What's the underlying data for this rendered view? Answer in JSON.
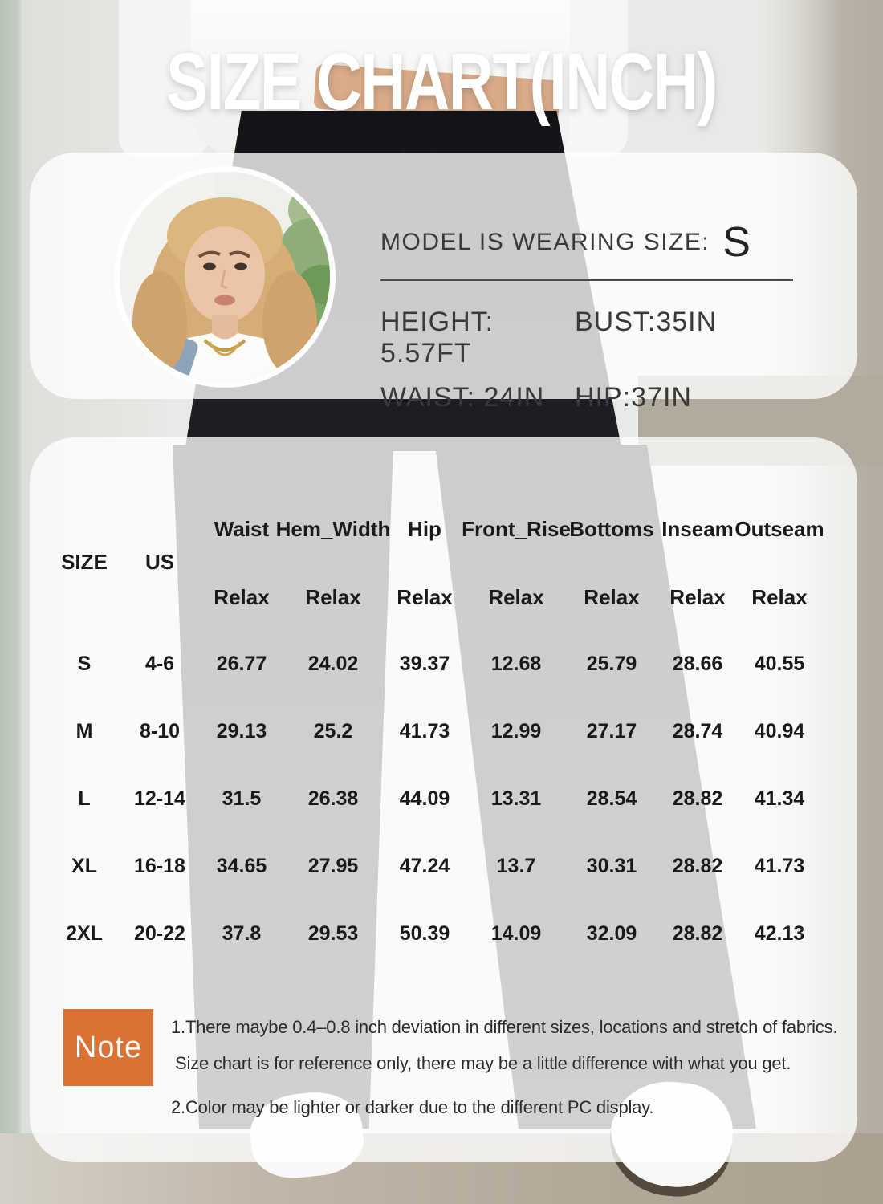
{
  "title": "SIZE CHART(INCH)",
  "unit": "inch",
  "model_card": {
    "wearing_label": "MODEL IS WEARING SIZE:",
    "wearing_size": "S",
    "stats": {
      "s1": "HEIGHT: 5.57FT",
      "s2": "BUST:35IN",
      "s3": "WAIST: 24IN",
      "s4": "HIP:37IN"
    }
  },
  "size_table": {
    "col_size": "SIZE",
    "col_us": "US",
    "measure_columns": [
      "Waist",
      "Hem_Width",
      "Hip",
      "Front_Rise",
      "Bottoms",
      "Inseam",
      "Outseam"
    ],
    "fit_label": "Relax",
    "rows": [
      {
        "size": "S",
        "us": "4-6",
        "values": [
          "26.77",
          "24.02",
          "39.37",
          "12.68",
          "25.79",
          "28.66",
          "40.55"
        ]
      },
      {
        "size": "M",
        "us": "8-10",
        "values": [
          "29.13",
          "25.2",
          "41.73",
          "12.99",
          "27.17",
          "28.74",
          "40.94"
        ]
      },
      {
        "size": "L",
        "us": "12-14",
        "values": [
          "31.5",
          "26.38",
          "44.09",
          "13.31",
          "28.54",
          "28.82",
          "41.34"
        ]
      },
      {
        "size": "XL",
        "us": "16-18",
        "values": [
          "34.65",
          "27.95",
          "47.24",
          "13.7",
          "30.31",
          "28.82",
          "41.73"
        ]
      },
      {
        "size": "2XL",
        "us": "20-22",
        "values": [
          "37.8",
          "29.53",
          "50.39",
          "14.09",
          "32.09",
          "28.82",
          "42.13"
        ]
      }
    ]
  },
  "note": {
    "badge": "Note",
    "line1": "1.There maybe 0.4–0.8 inch deviation in different sizes, locations and stretch of fabrics.",
    "line2": "Size chart is for reference only, there may be a little difference with what you get.",
    "line3": "2.Color may be lighter or darker due to the different PC display."
  },
  "colors": {
    "note_badge": "#dc7134",
    "title_text": "#ffffff",
    "table_text": "#1a1a1a",
    "panel_overlay": "rgba(255,255,255,0.78)"
  },
  "chart_data": {
    "type": "table",
    "title": "SIZE CHART(INCH)",
    "units": "inches",
    "fit": "Relax",
    "columns": [
      "SIZE",
      "US",
      "Waist",
      "Hem_Width",
      "Hip",
      "Front_Rise",
      "Bottoms",
      "Inseam",
      "Outseam"
    ],
    "rows": [
      [
        "S",
        "4-6",
        26.77,
        24.02,
        39.37,
        12.68,
        25.79,
        28.66,
        40.55
      ],
      [
        "M",
        "8-10",
        29.13,
        25.2,
        41.73,
        12.99,
        27.17,
        28.74,
        40.94
      ],
      [
        "L",
        "12-14",
        31.5,
        26.38,
        44.09,
        13.31,
        28.54,
        28.82,
        41.34
      ],
      [
        "XL",
        "16-18",
        34.65,
        27.95,
        47.24,
        13.7,
        30.31,
        28.82,
        41.73
      ],
      [
        "2XL",
        "20-22",
        37.8,
        29.53,
        50.39,
        14.09,
        32.09,
        28.82,
        42.13
      ]
    ],
    "model_reference": {
      "wearing_size": "S",
      "height_ft": 5.57,
      "bust_in": 35,
      "waist_in": 24,
      "hip_in": 37
    }
  }
}
